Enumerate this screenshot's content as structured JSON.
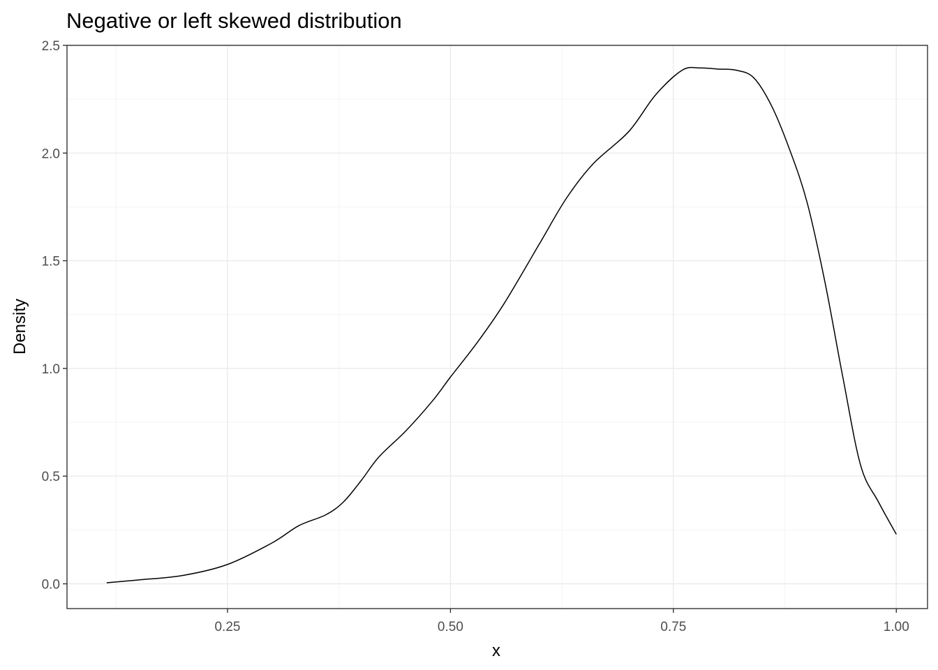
{
  "chart_data": {
    "type": "line",
    "title": "Negative or left skewed distribution",
    "xlabel": "x",
    "ylabel": "Density",
    "xlim": [
      0.07,
      1.035
    ],
    "ylim": [
      -0.115,
      2.5
    ],
    "x_ticks": [
      0.25,
      0.5,
      0.75,
      1.0
    ],
    "x_tick_labels": [
      "0.25",
      "0.50",
      "0.75",
      "1.00"
    ],
    "y_ticks": [
      0.0,
      0.5,
      1.0,
      1.5,
      2.0,
      2.5
    ],
    "y_tick_labels": [
      "0.0",
      "0.5",
      "1.0",
      "1.5",
      "2.0",
      "2.5"
    ],
    "grid": true,
    "series": [
      {
        "color": "#000000",
        "x": [
          0.1145,
          0.15,
          0.2,
          0.25,
          0.3,
          0.33,
          0.36,
          0.38,
          0.4,
          0.42,
          0.45,
          0.48,
          0.5,
          0.53,
          0.56,
          0.6,
          0.63,
          0.66,
          0.7,
          0.73,
          0.76,
          0.78,
          0.8,
          0.82,
          0.84,
          0.86,
          0.88,
          0.9,
          0.92,
          0.94,
          0.96,
          0.98,
          1.0
        ],
        "y": [
          0.005,
          0.018,
          0.039,
          0.09,
          0.19,
          0.27,
          0.32,
          0.38,
          0.48,
          0.59,
          0.71,
          0.85,
          0.96,
          1.12,
          1.3,
          1.58,
          1.79,
          1.95,
          2.1,
          2.27,
          2.385,
          2.395,
          2.39,
          2.385,
          2.35,
          2.22,
          2.02,
          1.77,
          1.4,
          0.96,
          0.55,
          0.38,
          0.23
        ]
      }
    ]
  }
}
